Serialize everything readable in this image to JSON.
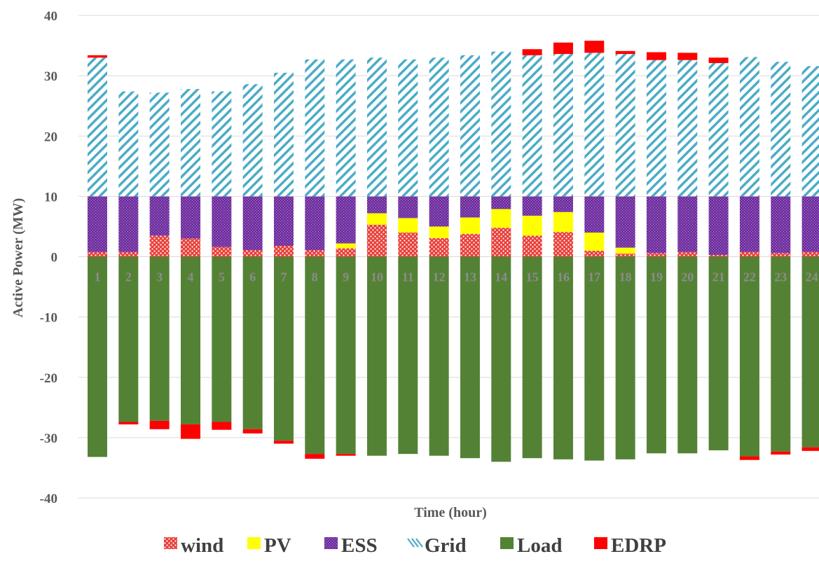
{
  "chart_data": {
    "type": "bar",
    "stacked": true,
    "title": "",
    "xlabel": "Time (hour)",
    "ylabel": "Active Power (MW)",
    "ylim": [
      -40,
      40
    ],
    "yticks": [
      40,
      30,
      20,
      10,
      0,
      -10,
      -20,
      -30,
      -40
    ],
    "grid": true,
    "legend_position": "bottom",
    "categories": [
      "1",
      "2",
      "3",
      "4",
      "5",
      "6",
      "7",
      "8",
      "9",
      "10",
      "11",
      "12",
      "13",
      "14",
      "15",
      "16",
      "17",
      "18",
      "19",
      "20",
      "21",
      "22",
      "23",
      "24"
    ],
    "series": [
      {
        "name": "wind",
        "color": "#e8403a",
        "pattern": "dots",
        "values": [
          0.8,
          0.8,
          3.5,
          3.0,
          1.6,
          1.1,
          1.8,
          1.1,
          1.4,
          5.3,
          4.0,
          3.1,
          3.8,
          4.8,
          3.5,
          4.1,
          1.0,
          0.5,
          0.6,
          0.8,
          0.3,
          0.8,
          0.6,
          0.8
        ]
      },
      {
        "name": "PV",
        "color": "#ffff00",
        "pattern": "solid",
        "values": [
          0,
          0,
          0,
          0,
          0,
          0,
          0,
          0,
          0.8,
          1.9,
          2.4,
          1.9,
          2.7,
          3.1,
          3.3,
          3.3,
          3.0,
          1.0,
          0,
          0,
          0,
          0,
          0,
          0
        ]
      },
      {
        "name": "ESS",
        "color": "#7030a0",
        "pattern": "crosshatch",
        "values": [
          9.2,
          9.2,
          6.5,
          7.0,
          8.4,
          8.9,
          8.2,
          8.9,
          7.8,
          2.8,
          3.6,
          5.0,
          3.5,
          2.1,
          3.2,
          2.6,
          6.0,
          8.5,
          9.4,
          9.2,
          9.7,
          9.2,
          9.4,
          9.2
        ]
      },
      {
        "name": "Grid",
        "color": "#4bacc6",
        "pattern": "diagonal",
        "values": [
          23.0,
          17.4,
          17.2,
          17.8,
          17.4,
          18.6,
          20.5,
          22.7,
          22.7,
          23.0,
          22.7,
          23.0,
          23.4,
          24.0,
          23.4,
          23.6,
          23.8,
          23.6,
          22.6,
          22.6,
          22.1,
          23.1,
          22.3,
          21.6
        ]
      },
      {
        "name": "Load",
        "color": "#548235",
        "pattern": "solid",
        "values": [
          -33.2,
          -27.4,
          -27.2,
          -27.8,
          -27.4,
          -28.6,
          -30.5,
          -32.7,
          -32.7,
          -33.0,
          -32.7,
          -33.0,
          -33.4,
          -34.0,
          -33.4,
          -33.6,
          -33.8,
          -33.6,
          -32.6,
          -32.6,
          -32.1,
          -33.1,
          -32.3,
          -31.6
        ]
      },
      {
        "name": "EDRP",
        "color": "#ff0000",
        "pattern": "solid",
        "values": [
          0.4,
          -0.4,
          -1.4,
          -2.4,
          -1.3,
          -0.7,
          -0.5,
          -0.8,
          -0.3,
          0,
          0,
          0,
          0,
          0,
          1.0,
          1.9,
          2.0,
          0.5,
          1.3,
          1.2,
          0.9,
          -0.6,
          -0.5,
          -0.6
        ]
      }
    ]
  }
}
